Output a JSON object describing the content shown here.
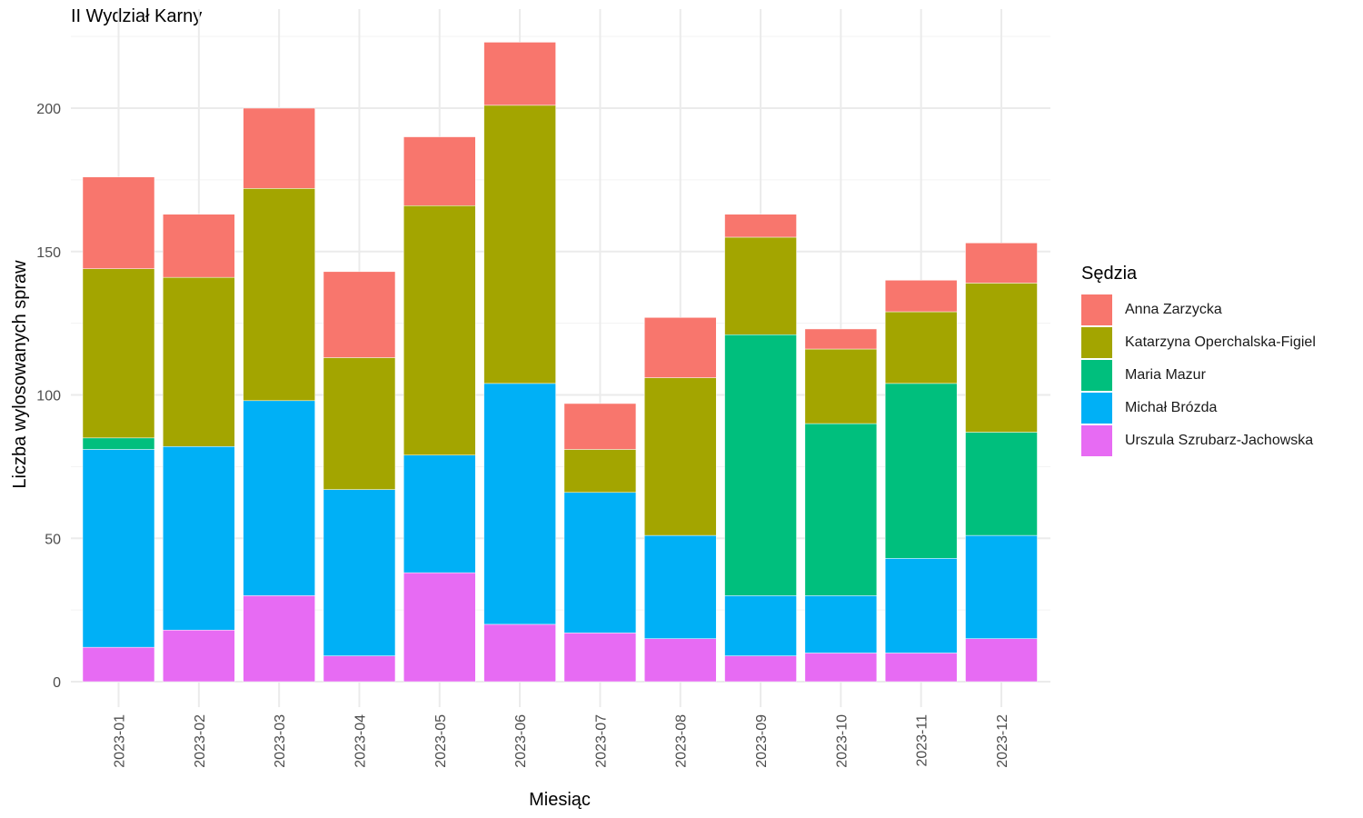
{
  "chart_data": {
    "type": "bar",
    "stacked": true,
    "title": "II Wydział Karny",
    "xlabel": "Miesiąc",
    "ylabel": "Liczba wylosowanych spraw",
    "ylim": [
      0,
      225
    ],
    "yticks": [
      0,
      50,
      100,
      150,
      200
    ],
    "grid": true,
    "legend_title": "Sędzia",
    "legend_position": "right",
    "categories": [
      "2023-01",
      "2023-02",
      "2023-03",
      "2023-04",
      "2023-05",
      "2023-06",
      "2023-07",
      "2023-08",
      "2023-09",
      "2023-10",
      "2023-11",
      "2023-12"
    ],
    "series": [
      {
        "name": "Urszula Szrubarz-Jachowska",
        "color": "#E76BF3",
        "values": [
          12,
          18,
          30,
          9,
          38,
          20,
          17,
          15,
          9,
          10,
          10,
          15
        ]
      },
      {
        "name": "Michał Brózda",
        "color": "#00B0F6",
        "values": [
          69,
          64,
          68,
          58,
          41,
          84,
          49,
          36,
          21,
          20,
          33,
          36
        ]
      },
      {
        "name": "Maria Mazur",
        "color": "#00BF7D",
        "values": [
          4,
          0,
          0,
          0,
          0,
          0,
          0,
          0,
          91,
          60,
          61,
          36
        ]
      },
      {
        "name": "Katarzyna Operchalska-Figiel",
        "color": "#A3A500",
        "values": [
          59,
          59,
          74,
          46,
          87,
          97,
          15,
          55,
          34,
          26,
          25,
          52
        ]
      },
      {
        "name": "Anna Zarzycka",
        "color": "#F8766D",
        "values": [
          32,
          22,
          28,
          30,
          24,
          22,
          16,
          21,
          8,
          7,
          11,
          14
        ]
      }
    ],
    "legend_order": [
      "Anna Zarzycka",
      "Katarzyna Operchalska-Figiel",
      "Maria Mazur",
      "Michał Brózda",
      "Urszula Szrubarz-Jachowska"
    ]
  }
}
